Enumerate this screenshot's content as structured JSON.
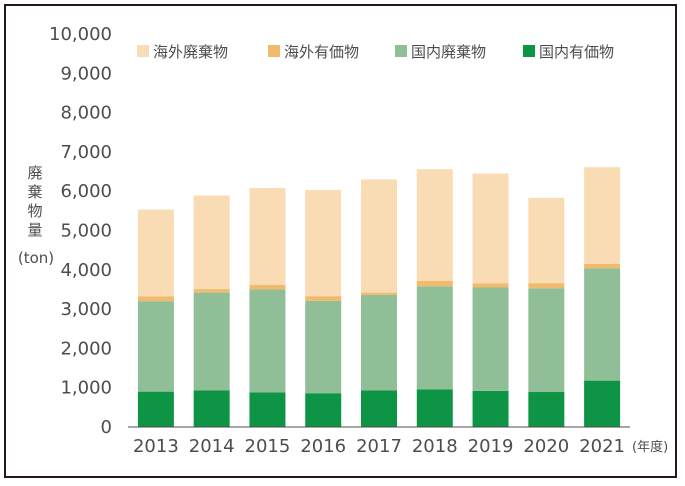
{
  "chart_data": {
    "type": "bar",
    "stacked": true,
    "title": "",
    "ylabel_chars": [
      "廃",
      "棄",
      "物",
      "量"
    ],
    "ylabel_unit": "(ton)",
    "xlabel_unit": "(年度)",
    "categories": [
      "2013",
      "2014",
      "2015",
      "2016",
      "2017",
      "2018",
      "2019",
      "2020",
      "2021"
    ],
    "ylim": [
      0,
      10000
    ],
    "yticks": [
      0,
      1000,
      2000,
      3000,
      4000,
      5000,
      6000,
      7000,
      8000,
      9000,
      10000
    ],
    "ytick_labels": [
      "0",
      "1,000",
      "2,000",
      "3,000",
      "4,000",
      "5,000",
      "6,000",
      "7,000",
      "8,000",
      "9,000",
      "10,000"
    ],
    "grid": false,
    "legend_position": "top-right",
    "series": [
      {
        "name": "国内有価物",
        "color": "#0d9444",
        "values": [
          900,
          930,
          880,
          860,
          930,
          960,
          920,
          890,
          1180
        ]
      },
      {
        "name": "国内廃棄物",
        "color": "#8fbe97",
        "values": [
          2300,
          2490,
          2620,
          2350,
          2430,
          2620,
          2630,
          2640,
          2860
        ]
      },
      {
        "name": "海外有価物",
        "color": "#f0bb6c",
        "values": [
          120,
          90,
          120,
          120,
          60,
          140,
          110,
          130,
          110
        ]
      },
      {
        "name": "海外廃棄物",
        "color": "#f9dbb4",
        "values": [
          2210,
          2380,
          2460,
          2700,
          2880,
          2840,
          2790,
          2170,
          2460
        ]
      }
    ],
    "legend_order": [
      "海外廃棄物",
      "海外有価物",
      "国内廃棄物",
      "国内有価物"
    ]
  }
}
